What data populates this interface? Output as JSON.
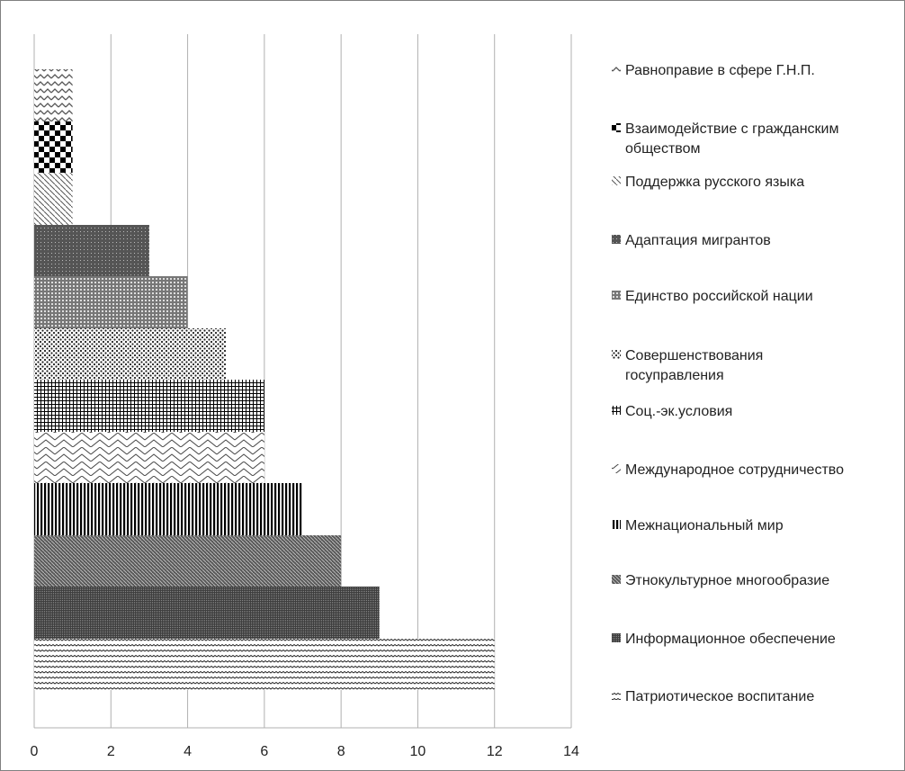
{
  "chart_data": {
    "type": "bar",
    "orientation": "horizontal",
    "stacked": false,
    "categories": [
      "Равноправие в сфере Г.Н.П.",
      "Взаимодействие с гражданским обществом",
      "Поддержка русского языка",
      "Адаптация мигрантов",
      "Единство российской нации",
      "Совершенствования госуправления",
      "Соц.-эк.условия",
      "Международное сотрудничество",
      "Межнациональный мир",
      "Этнокультурное многообразие",
      "Информационное обеспечение",
      "Патриотическое воспитание"
    ],
    "values": [
      1,
      1,
      1,
      3,
      4,
      5,
      6,
      6,
      7,
      8,
      9,
      12
    ],
    "xlim": [
      0,
      14
    ],
    "x_ticks": [
      "0",
      "2",
      "4",
      "6",
      "8",
      "10",
      "12",
      "14"
    ],
    "xlabel": "",
    "ylabel": "",
    "grid": "vertical",
    "legend": {
      "placement": "right",
      "entries": [
        {
          "label_lines": [
            "Равноправие в сфере Г.Н.П."
          ],
          "pattern": "zigzag-light"
        },
        {
          "label_lines": [
            "Взаимодействие с гражданским",
            "обществом"
          ],
          "pattern": "checker-large"
        },
        {
          "label_lines": [
            "Поддержка русского языка"
          ],
          "pattern": "diagonal-light"
        },
        {
          "label_lines": [
            "Адаптация мигрантов"
          ],
          "pattern": "dark-dots"
        },
        {
          "label_lines": [
            "Единство российской нации"
          ],
          "pattern": "dotted-grid"
        },
        {
          "label_lines": [
            "Совершенствования",
            "госуправления"
          ],
          "pattern": "sparse-dots"
        },
        {
          "label_lines": [
            "Соц.-эк.условия"
          ],
          "pattern": "small-grid"
        },
        {
          "label_lines": [
            "Международное сотрудничество"
          ],
          "pattern": "wide-zigzag"
        },
        {
          "label_lines": [
            "Межнациональный мир"
          ],
          "pattern": "vertical-lines"
        },
        {
          "label_lines": [
            "Этнокультурное многообразие"
          ],
          "pattern": "dark-diagonal"
        },
        {
          "label_lines": [
            "Информационное обеспечение"
          ],
          "pattern": "dense-checker"
        },
        {
          "label_lines": [
            "Патриотическое воспитание"
          ],
          "pattern": "horizontal-wave"
        }
      ]
    }
  }
}
